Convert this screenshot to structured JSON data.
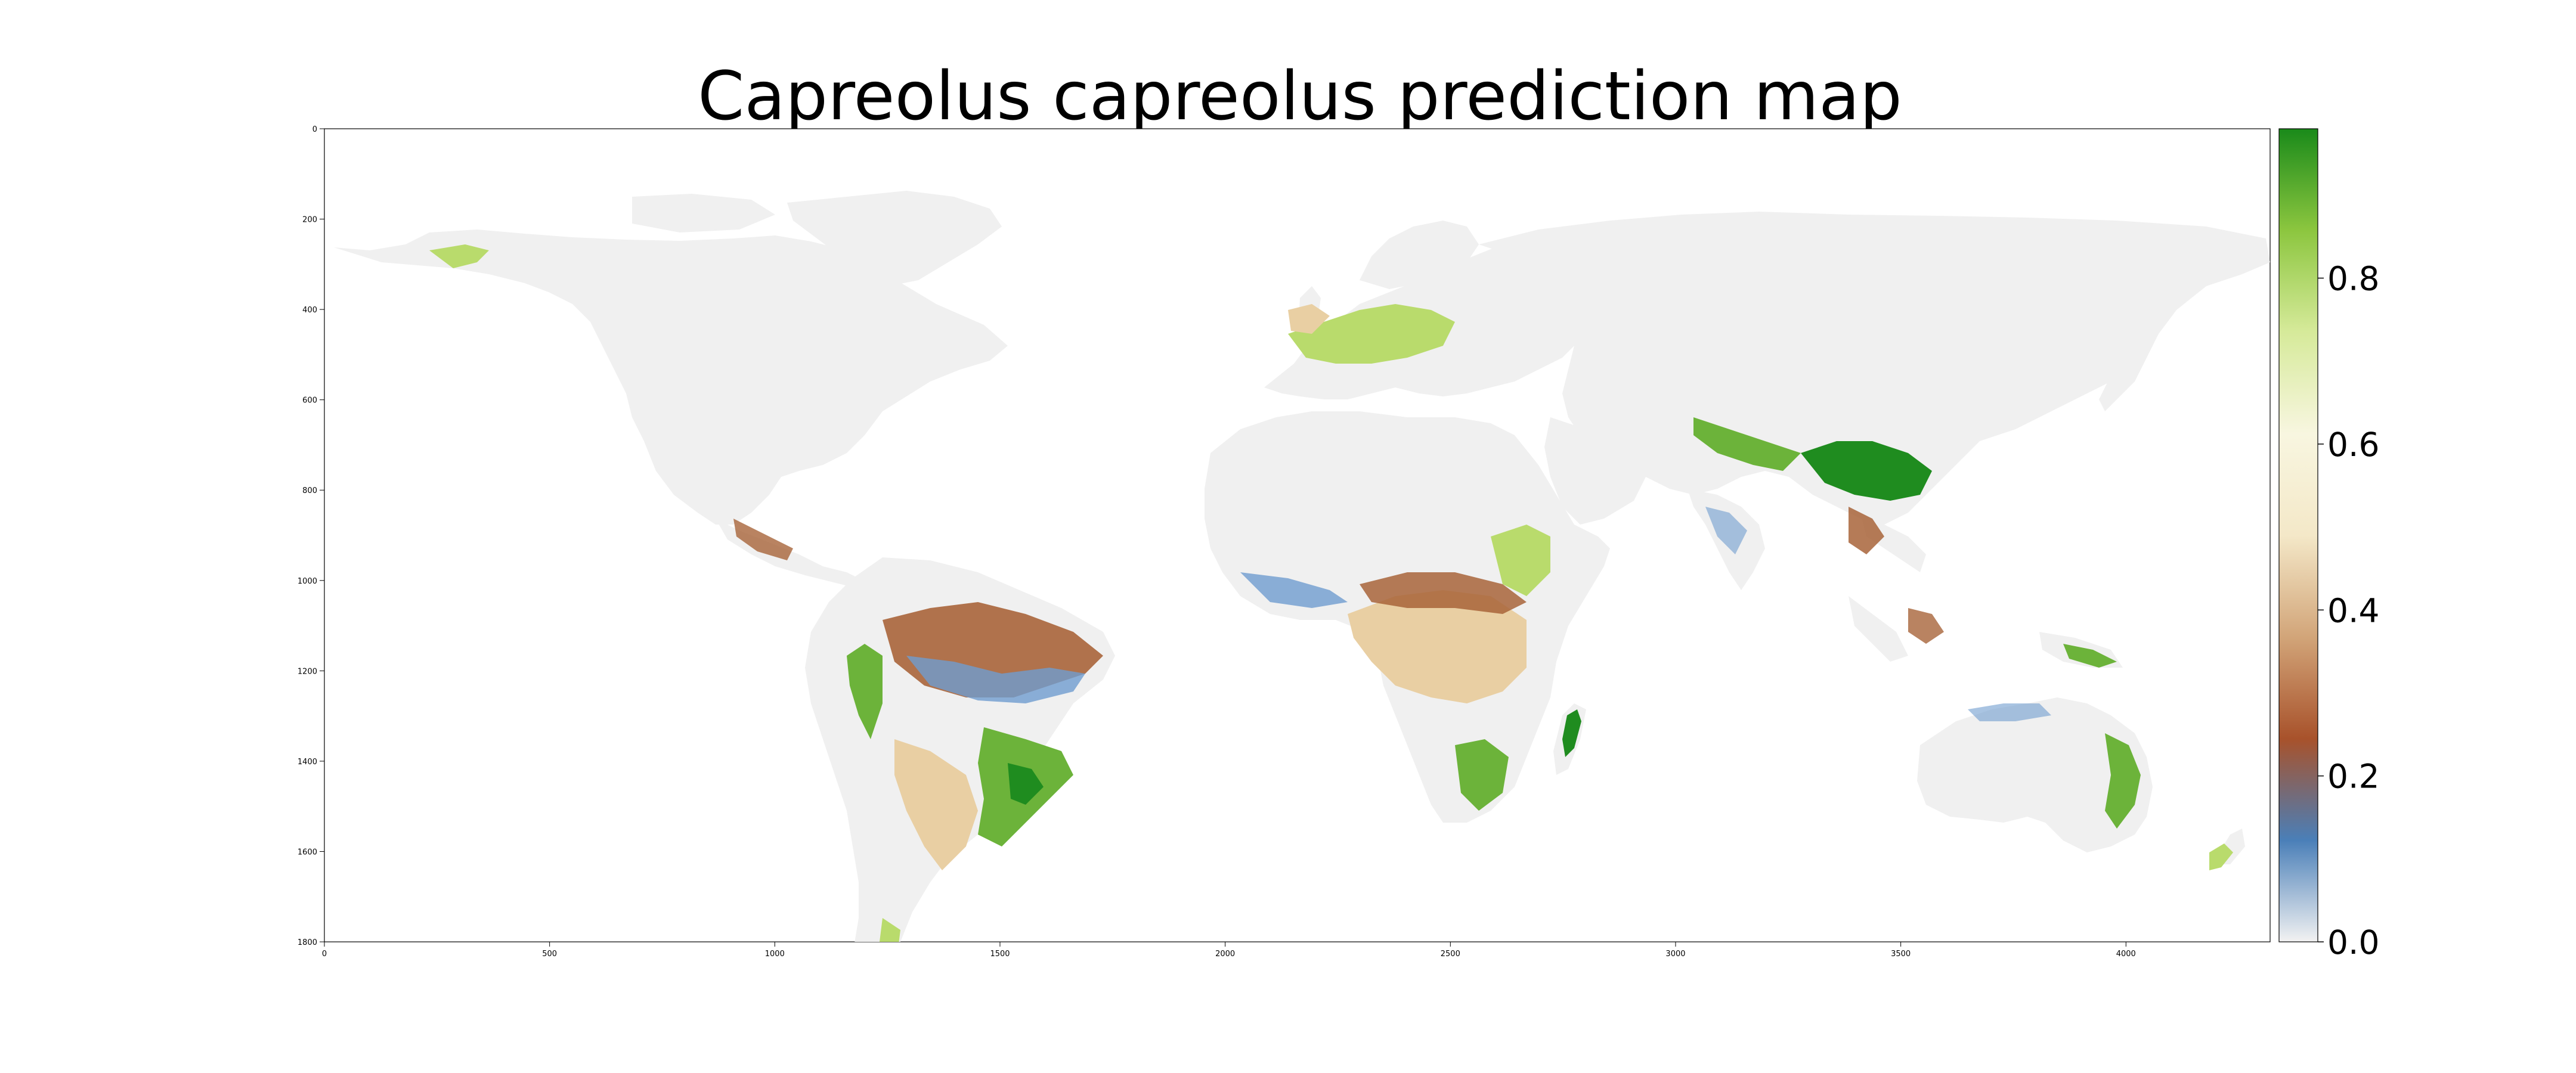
{
  "title": "Capreolus capreolus prediction map",
  "x_axis": {
    "ticks": [
      "0",
      "500",
      "1000",
      "1500",
      "2000",
      "2500",
      "3000",
      "3500",
      "4000"
    ],
    "values": [
      0,
      500,
      1000,
      1500,
      2000,
      2500,
      3000,
      3500,
      4000
    ],
    "range": [
      0,
      4320
    ]
  },
  "y_axis": {
    "ticks": [
      "0",
      "200",
      "400",
      "600",
      "800",
      "1000",
      "1200",
      "1400",
      "1600",
      "1800"
    ],
    "values": [
      0,
      200,
      400,
      600,
      800,
      1000,
      1200,
      1400,
      1600,
      1800
    ],
    "range": [
      0,
      1800
    ]
  },
  "colorbar": {
    "ticks": [
      "0.0",
      "0.2",
      "0.4",
      "0.6",
      "0.8"
    ],
    "values": [
      0.0,
      0.2,
      0.4,
      0.6,
      0.8
    ],
    "range": [
      0,
      0.98
    ],
    "colors": [
      "#f2f2f2",
      "#4a7fb8",
      "#a8522b",
      "#d2a579",
      "#f4e8c8",
      "#f8f6e0",
      "#d6ea9a",
      "#8cc63f",
      "#1a8a1a"
    ]
  },
  "colors": {
    "land_low": "#f0f0f0",
    "blue": "#6f9ccf",
    "brown": "#a8643a",
    "tan": "#e9cfa3",
    "light_green": "#b9db6c",
    "green": "#6cb33a",
    "dark_green": "#1f8c1f"
  }
}
